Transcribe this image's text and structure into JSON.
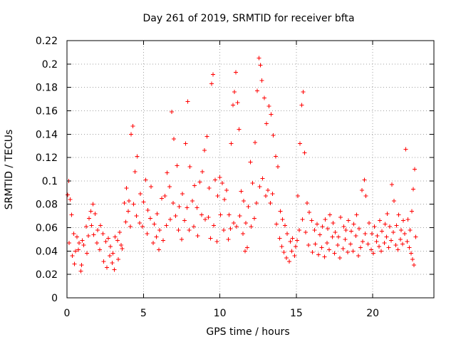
{
  "chart_data": {
    "type": "scatter",
    "title": "Day 261 of 2019, SRMTID for receiver bfta",
    "xlabel": "GPS time / hours",
    "ylabel": "SRMTID / TECUs",
    "xlim": [
      0,
      24
    ],
    "ylim": [
      0,
      0.22
    ],
    "xticks": [
      0,
      5,
      10,
      15,
      20
    ],
    "yticks": [
      0,
      0.02,
      0.04,
      0.06,
      0.08,
      0.1,
      0.12,
      0.14,
      0.16,
      0.18,
      0.2,
      0.22
    ],
    "grid": true,
    "marker": "+",
    "colors": {
      "series": "#ff0000",
      "grid": "#a0a0a0",
      "axes": "#000000"
    },
    "series": [
      {
        "points": [
          [
            0.05,
            0.088
          ],
          [
            0.12,
            0.1
          ],
          [
            0.2,
            0.084
          ],
          [
            0.3,
            0.071
          ],
          [
            0.45,
            0.055
          ],
          [
            0.55,
            0.04
          ],
          [
            0.65,
            0.052
          ],
          [
            0.8,
            0.047
          ],
          [
            0.95,
            0.028
          ],
          [
            1.1,
            0.045
          ],
          [
            1.25,
            0.061
          ],
          [
            1.4,
            0.053
          ],
          [
            1.55,
            0.074
          ],
          [
            1.7,
            0.08
          ],
          [
            1.85,
            0.072
          ],
          [
            2.0,
            0.058
          ],
          [
            2.2,
            0.062
          ],
          [
            2.35,
            0.055
          ],
          [
            2.55,
            0.048
          ],
          [
            2.7,
            0.051
          ],
          [
            2.85,
            0.044
          ],
          [
            3.0,
            0.038
          ],
          [
            3.15,
            0.052
          ],
          [
            3.3,
            0.049
          ],
          [
            3.45,
            0.056
          ],
          [
            3.6,
            0.042
          ],
          [
            3.75,
            0.081
          ],
          [
            3.9,
            0.094
          ],
          [
            4.05,
            0.083
          ],
          [
            4.2,
            0.14
          ],
          [
            4.3,
            0.147
          ],
          [
            4.45,
            0.108
          ],
          [
            4.6,
            0.121
          ],
          [
            4.8,
            0.089
          ],
          [
            5.0,
            0.082
          ],
          [
            5.15,
            0.101
          ],
          [
            5.3,
            0.075
          ],
          [
            5.5,
            0.095
          ],
          [
            5.7,
            0.063
          ],
          [
            5.9,
            0.072
          ],
          [
            6.05,
            0.058
          ],
          [
            6.2,
            0.085
          ],
          [
            6.4,
            0.087
          ],
          [
            6.55,
            0.107
          ],
          [
            6.7,
            0.095
          ],
          [
            6.85,
            0.159
          ],
          [
            7.0,
            0.136
          ],
          [
            7.2,
            0.113
          ],
          [
            7.35,
            0.078
          ],
          [
            7.55,
            0.089
          ],
          [
            7.75,
            0.132
          ],
          [
            7.9,
            0.168
          ],
          [
            8.05,
            0.112
          ],
          [
            8.2,
            0.083
          ],
          [
            8.35,
            0.096
          ],
          [
            8.5,
            0.077
          ],
          [
            8.7,
            0.099
          ],
          [
            8.85,
            0.108
          ],
          [
            9.0,
            0.126
          ],
          [
            9.15,
            0.138
          ],
          [
            9.3,
            0.094
          ],
          [
            9.45,
            0.183
          ],
          [
            9.55,
            0.191
          ],
          [
            9.7,
            0.101
          ],
          [
            9.85,
            0.087
          ],
          [
            10.0,
            0.103
          ],
          [
            10.15,
            0.098
          ],
          [
            10.3,
            0.084
          ],
          [
            10.45,
            0.092
          ],
          [
            10.6,
            0.071
          ],
          [
            10.75,
            0.132
          ],
          [
            10.85,
            0.165
          ],
          [
            10.95,
            0.176
          ],
          [
            11.05,
            0.193
          ],
          [
            11.15,
            0.167
          ],
          [
            11.25,
            0.144
          ],
          [
            11.4,
            0.091
          ],
          [
            11.55,
            0.083
          ],
          [
            11.7,
            0.064
          ],
          [
            11.85,
            0.078
          ],
          [
            12.0,
            0.116
          ],
          [
            12.15,
            0.098
          ],
          [
            12.3,
            0.133
          ],
          [
            12.45,
            0.177
          ],
          [
            12.55,
            0.205
          ],
          [
            12.65,
            0.199
          ],
          [
            12.75,
            0.186
          ],
          [
            12.9,
            0.171
          ],
          [
            13.05,
            0.149
          ],
          [
            13.2,
            0.164
          ],
          [
            13.35,
            0.157
          ],
          [
            13.5,
            0.139
          ],
          [
            13.65,
            0.121
          ],
          [
            13.8,
            0.112
          ],
          [
            13.95,
            0.074
          ],
          [
            14.1,
            0.067
          ],
          [
            14.25,
            0.062
          ],
          [
            14.4,
            0.055
          ],
          [
            14.6,
            0.048
          ],
          [
            14.75,
            0.051
          ],
          [
            14.95,
            0.044
          ],
          [
            15.1,
            0.087
          ],
          [
            15.25,
            0.132
          ],
          [
            15.35,
            0.165
          ],
          [
            15.45,
            0.176
          ],
          [
            15.55,
            0.124
          ],
          [
            15.7,
            0.081
          ],
          [
            15.85,
            0.073
          ],
          [
            16.0,
            0.066
          ],
          [
            16.2,
            0.058
          ],
          [
            16.35,
            0.063
          ],
          [
            16.55,
            0.054
          ],
          [
            16.7,
            0.061
          ],
          [
            16.9,
            0.067
          ],
          [
            17.05,
            0.059
          ],
          [
            17.2,
            0.071
          ],
          [
            17.4,
            0.064
          ],
          [
            17.55,
            0.056
          ],
          [
            17.75,
            0.052
          ],
          [
            17.9,
            0.069
          ],
          [
            18.1,
            0.061
          ],
          [
            18.25,
            0.058
          ],
          [
            18.4,
            0.066
          ],
          [
            18.6,
            0.057
          ],
          [
            18.75,
            0.063
          ],
          [
            18.95,
            0.071
          ],
          [
            19.1,
            0.059
          ],
          [
            19.3,
            0.092
          ],
          [
            19.45,
            0.101
          ],
          [
            19.55,
            0.087
          ],
          [
            19.75,
            0.064
          ],
          [
            19.95,
            0.055
          ],
          [
            20.1,
            0.061
          ],
          [
            20.3,
            0.053
          ],
          [
            20.45,
            0.066
          ],
          [
            20.6,
            0.057
          ],
          [
            20.8,
            0.063
          ],
          [
            20.95,
            0.072
          ],
          [
            21.1,
            0.061
          ],
          [
            21.25,
            0.097
          ],
          [
            21.4,
            0.083
          ],
          [
            21.55,
            0.062
          ],
          [
            21.7,
            0.071
          ],
          [
            21.85,
            0.058
          ],
          [
            22.0,
            0.066
          ],
          [
            22.15,
            0.127
          ],
          [
            22.3,
            0.067
          ],
          [
            22.45,
            0.058
          ],
          [
            22.55,
            0.074
          ],
          [
            22.65,
            0.093
          ],
          [
            22.75,
            0.11
          ],
          [
            0.15,
            0.047
          ],
          [
            0.35,
            0.036
          ],
          [
            0.5,
            0.029
          ],
          [
            0.75,
            0.041
          ],
          [
            0.9,
            0.023
          ],
          [
            1.0,
            0.049
          ],
          [
            1.3,
            0.038
          ],
          [
            1.45,
            0.068
          ],
          [
            1.6,
            0.062
          ],
          [
            1.75,
            0.054
          ],
          [
            1.95,
            0.047
          ],
          [
            2.15,
            0.041
          ],
          [
            2.4,
            0.031
          ],
          [
            2.6,
            0.026
          ],
          [
            2.8,
            0.036
          ],
          [
            2.95,
            0.03
          ],
          [
            3.1,
            0.024
          ],
          [
            3.35,
            0.033
          ],
          [
            3.55,
            0.045
          ],
          [
            3.85,
            0.065
          ],
          [
            4.0,
            0.074
          ],
          [
            4.15,
            0.061
          ],
          [
            4.35,
            0.08
          ],
          [
            4.55,
            0.07
          ],
          [
            4.75,
            0.064
          ],
          [
            4.95,
            0.061
          ],
          [
            5.25,
            0.055
          ],
          [
            5.45,
            0.068
          ],
          [
            5.65,
            0.047
          ],
          [
            5.85,
            0.052
          ],
          [
            6.0,
            0.041
          ],
          [
            6.3,
            0.049
          ],
          [
            6.5,
            0.062
          ],
          [
            6.75,
            0.067
          ],
          [
            6.95,
            0.081
          ],
          [
            7.1,
            0.07
          ],
          [
            7.3,
            0.058
          ],
          [
            7.5,
            0.05
          ],
          [
            7.7,
            0.066
          ],
          [
            7.85,
            0.077
          ],
          [
            8.0,
            0.058
          ],
          [
            8.3,
            0.061
          ],
          [
            8.55,
            0.053
          ],
          [
            8.8,
            0.071
          ],
          [
            9.05,
            0.067
          ],
          [
            9.25,
            0.069
          ],
          [
            9.4,
            0.051
          ],
          [
            9.6,
            0.062
          ],
          [
            9.8,
            0.048
          ],
          [
            10.05,
            0.071
          ],
          [
            10.25,
            0.058
          ],
          [
            10.55,
            0.05
          ],
          [
            10.7,
            0.059
          ],
          [
            10.9,
            0.064
          ],
          [
            11.1,
            0.061
          ],
          [
            11.3,
            0.07
          ],
          [
            11.5,
            0.055
          ],
          [
            11.65,
            0.04
          ],
          [
            11.8,
            0.043
          ],
          [
            12.05,
            0.061
          ],
          [
            12.25,
            0.068
          ],
          [
            12.4,
            0.081
          ],
          [
            12.6,
            0.095
          ],
          [
            12.8,
            0.102
          ],
          [
            13.0,
            0.087
          ],
          [
            13.15,
            0.092
          ],
          [
            13.3,
            0.081
          ],
          [
            13.45,
            0.089
          ],
          [
            13.7,
            0.063
          ],
          [
            13.9,
            0.051
          ],
          [
            14.05,
            0.044
          ],
          [
            14.2,
            0.039
          ],
          [
            14.35,
            0.034
          ],
          [
            14.55,
            0.031
          ],
          [
            14.7,
            0.04
          ],
          [
            14.9,
            0.036
          ],
          [
            15.05,
            0.049
          ],
          [
            15.2,
            0.058
          ],
          [
            15.4,
            0.067
          ],
          [
            15.6,
            0.056
          ],
          [
            15.8,
            0.045
          ],
          [
            16.05,
            0.039
          ],
          [
            16.25,
            0.046
          ],
          [
            16.45,
            0.037
          ],
          [
            16.65,
            0.043
          ],
          [
            16.85,
            0.035
          ],
          [
            17.0,
            0.047
          ],
          [
            17.15,
            0.041
          ],
          [
            17.35,
            0.052
          ],
          [
            17.5,
            0.038
          ],
          [
            17.7,
            0.045
          ],
          [
            17.85,
            0.034
          ],
          [
            18.05,
            0.042
          ],
          [
            18.2,
            0.05
          ],
          [
            18.35,
            0.039
          ],
          [
            18.55,
            0.046
          ],
          [
            18.7,
            0.04
          ],
          [
            18.9,
            0.053
          ],
          [
            19.05,
            0.036
          ],
          [
            19.2,
            0.043
          ],
          [
            19.35,
            0.048
          ],
          [
            19.5,
            0.055
          ],
          [
            19.7,
            0.046
          ],
          [
            19.9,
            0.041
          ],
          [
            20.05,
            0.038
          ],
          [
            20.25,
            0.048
          ],
          [
            20.4,
            0.044
          ],
          [
            20.55,
            0.04
          ],
          [
            20.75,
            0.047
          ],
          [
            20.9,
            0.052
          ],
          [
            21.05,
            0.043
          ],
          [
            21.2,
            0.049
          ],
          [
            21.35,
            0.056
          ],
          [
            21.5,
            0.045
          ],
          [
            21.65,
            0.041
          ],
          [
            21.8,
            0.05
          ],
          [
            21.95,
            0.046
          ],
          [
            22.1,
            0.055
          ],
          [
            22.25,
            0.048
          ],
          [
            22.4,
            0.043
          ],
          [
            22.5,
            0.038
          ],
          [
            22.6,
            0.033
          ],
          [
            22.7,
            0.028
          ],
          [
            22.8,
            0.052
          ]
        ]
      }
    ]
  }
}
